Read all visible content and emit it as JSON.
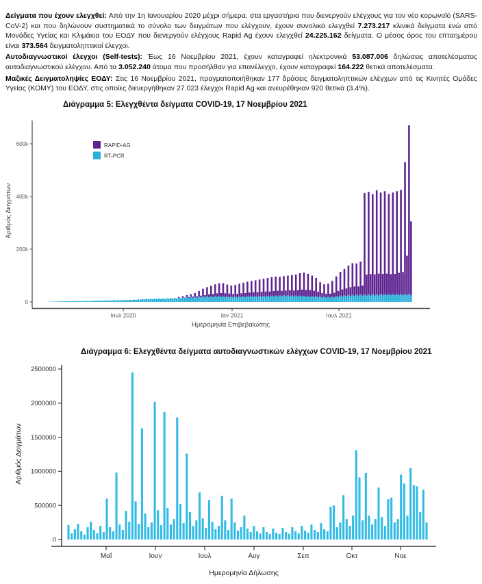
{
  "intro": {
    "paragraphs": [
      {
        "runs": [
          {
            "b": true,
            "t": "Δείγματα που έχουν ελεγχθεί: "
          },
          {
            "b": false,
            "t": "Από την 1η Ιανουαρίου 2020 μέχρι σήμερα, στα εργαστήρια που διενεργούν ελέγχους για τον νέο κορωνοϊό (SARS-CoV-2) και που δηλώνουν συστηματικά το σύνολο των δειγμάτων που ελέγχουν, έχουν συνολικά ελεγχθεί "
          },
          {
            "b": true,
            "t": "7.273.217"
          },
          {
            "b": false,
            "t": " κλινικά δείγματα ενώ από Μονάδες Υγείας και Κλιμάκια του ΕΟΔΥ που διενεργούν ελέγχους Rapid Ag έχουν ελεγχθεί "
          },
          {
            "b": true,
            "t": "24.225.162"
          },
          {
            "b": false,
            "t": " δείγματα.  Ο μέσος όρος του επταημέρου είναι "
          },
          {
            "b": true,
            "t": "373.564"
          },
          {
            "b": false,
            "t": " δειγματοληπτικοί έλεγχοι."
          }
        ]
      },
      {
        "runs": [
          {
            "b": true,
            "t": "Αυτοδιαγνωστικοί έλεγχοι (Self-tests): "
          },
          {
            "b": false,
            "t": "Έως 16 Νοεμβρίου 2021, έχουν καταγραφεί ηλεκτρονικά "
          },
          {
            "b": true,
            "t": "53.087.006"
          },
          {
            "b": false,
            "t": " δηλώσεις αποτελέσματος αυτοδιαγνωστικού ελέγχου. Από τα "
          },
          {
            "b": true,
            "t": "3.052.240"
          },
          {
            "b": false,
            "t": " άτομα που προσήλθαν για επανέλεγχο, έχουν καταγραφεί "
          },
          {
            "b": true,
            "t": "164.222"
          },
          {
            "b": false,
            "t": " θετικά αποτελέσματα."
          }
        ]
      },
      {
        "runs": [
          {
            "b": true,
            "t": "Μαζικές Δειγματοληψίες ΕΟΔΥ: "
          },
          {
            "b": false,
            "t": "Στις 16 Νοεμβρίου 2021, πραγματοποιήθηκαν 177 δράσεις δειγματοληπτικών ελέγχων από τις Κινητές Ομάδες Υγείας (ΚΟΜΥ) του ΕΟΔΥ, στις οποίες διενεργήθηκαν 27.023 έλεγχοι Rapid Ag και ανευρέθηκαν 920 θετικά (3.4%)."
          }
        ]
      }
    ]
  },
  "chart_data": [
    {
      "type": "bar",
      "stacked": true,
      "title": "Διάγραμμα 5: Ελεγχθέντα δείγματα COVID-19, 17 Νοεμβρίου 2021",
      "xlabel": "Ημερομηνία Επιβεβαίωσης",
      "ylabel": "Αριθμός Δειγμάτων",
      "yticks": [
        "0",
        "200k",
        "400k",
        "600k"
      ],
      "ytick_values_thousands": [
        0,
        200,
        400,
        600
      ],
      "xticks": [
        "Ιουλ 2020",
        "Ιαν 2021",
        "Ιουλ 2021"
      ],
      "ylim": [
        0,
        680000
      ],
      "grid": false,
      "legend_position": "top-left-inside",
      "legend": [
        {
          "label": "RAPID-AG",
          "color": "#5e2590"
        },
        {
          "label": "RT-PCR",
          "color": "#29b0db"
        }
      ],
      "unit": 1000,
      "series_note": "Daily bars late Feb 2020 - 17 Nov 2021, estimated weekly envelope; each week = [rapid_ag_weekday_peak, rapid_ag_weekend_low, rt_pcr_level] in thousands of samples",
      "weeks": [
        [
          0,
          0,
          1
        ],
        [
          0,
          0,
          1.5
        ],
        [
          0,
          0,
          2
        ],
        [
          0,
          0,
          2.5
        ],
        [
          0,
          0,
          3
        ],
        [
          0,
          0,
          3
        ],
        [
          0,
          0,
          3.5
        ],
        [
          0,
          0,
          3
        ],
        [
          0,
          0,
          3.5
        ],
        [
          0,
          0,
          4
        ],
        [
          0,
          0,
          4
        ],
        [
          0,
          0,
          4.5
        ],
        [
          0,
          0,
          5
        ],
        [
          0,
          0,
          5
        ],
        [
          0,
          0,
          5.5
        ],
        [
          0,
          0,
          6
        ],
        [
          0,
          0,
          6.5
        ],
        [
          0,
          0,
          7
        ],
        [
          0,
          0,
          7
        ],
        [
          0,
          0,
          7.5
        ],
        [
          0,
          0,
          8
        ],
        [
          0,
          0,
          9
        ],
        [
          0,
          0,
          10
        ],
        [
          0,
          0,
          11
        ],
        [
          0,
          0,
          12
        ],
        [
          0,
          0,
          12
        ],
        [
          0,
          0,
          13
        ],
        [
          0,
          0,
          13
        ],
        [
          0,
          0,
          13
        ],
        [
          0,
          0,
          14
        ],
        [
          0,
          0,
          15
        ],
        [
          0,
          0,
          15
        ],
        [
          3,
          1,
          16
        ],
        [
          5,
          2,
          17
        ],
        [
          8,
          3,
          18
        ],
        [
          10,
          4,
          19
        ],
        [
          15,
          5,
          19
        ],
        [
          22,
          7,
          20
        ],
        [
          30,
          9,
          20
        ],
        [
          35,
          11,
          21
        ],
        [
          40,
          12,
          21
        ],
        [
          45,
          14,
          22
        ],
        [
          48,
          15,
          22
        ],
        [
          50,
          15,
          21
        ],
        [
          45,
          14,
          21
        ],
        [
          42,
          13,
          20
        ],
        [
          45,
          14,
          20
        ],
        [
          48,
          15,
          21
        ],
        [
          52,
          16,
          21
        ],
        [
          55,
          17,
          22
        ],
        [
          58,
          18,
          22
        ],
        [
          60,
          18,
          22
        ],
        [
          62,
          19,
          23
        ],
        [
          65,
          20,
          23
        ],
        [
          68,
          20,
          23
        ],
        [
          70,
          21,
          24
        ],
        [
          72,
          22,
          24
        ],
        [
          70,
          21,
          25
        ],
        [
          73,
          22,
          25
        ],
        [
          75,
          23,
          25
        ],
        [
          78,
          23,
          24
        ],
        [
          80,
          24,
          24
        ],
        [
          85,
          26,
          24
        ],
        [
          88,
          26,
          23
        ],
        [
          85,
          26,
          22
        ],
        [
          78,
          24,
          22
        ],
        [
          70,
          21,
          21
        ],
        [
          55,
          17,
          20
        ],
        [
          48,
          15,
          19
        ],
        [
          50,
          15,
          19
        ],
        [
          60,
          18,
          20
        ],
        [
          75,
          23,
          22
        ],
        [
          90,
          27,
          24
        ],
        [
          100,
          30,
          25
        ],
        [
          112,
          34,
          26
        ],
        [
          120,
          36,
          27
        ],
        [
          118,
          35,
          28
        ],
        [
          125,
          38,
          28
        ],
        [
          385,
          80,
          28
        ],
        [
          390,
          82,
          28
        ],
        [
          380,
          80,
          29
        ],
        [
          395,
          83,
          29
        ],
        [
          385,
          81,
          30
        ],
        [
          390,
          82,
          30
        ],
        [
          380,
          80,
          30
        ],
        [
          385,
          81,
          30
        ],
        [
          390,
          85,
          30
        ],
        [
          395,
          88,
          30
        ],
        [
          500,
          150,
          30
        ],
        [
          640,
          280,
          30
        ]
      ]
    },
    {
      "type": "bar",
      "title": "Διάγραμμα 6: Ελεγχθέντα δείγματα αυτοδιαγνωστικών ελέγχων COVID-19, 17 Νοεμβρίου 2021",
      "xlabel": "Ημερομηνία Δήλωσης",
      "ylabel": "Αριθμός Δειγμάτων",
      "yticks": [
        "0",
        "500000",
        "1000000",
        "1500000",
        "2000000",
        "2500000"
      ],
      "ytick_values_thousands": [
        0,
        500,
        1000,
        1500,
        2000,
        2500
      ],
      "xticks": [
        "Μαΐ",
        "Ιουν",
        "Ιουλ",
        "Αυγ",
        "Σεπ",
        "Οκτ",
        "Νοε"
      ],
      "ylim": [
        0,
        2500000
      ],
      "grid": false,
      "color": "#32bbe5",
      "unit": 1000,
      "series_note": "Self-test declarations per day, early Apr 2021 - 17 Nov 2021, estimated values in thousands, one value per 2 days",
      "values": [
        210,
        90,
        150,
        230,
        120,
        70,
        180,
        260,
        140,
        90,
        200,
        110,
        600,
        180,
        120,
        980,
        220,
        140,
        420,
        260,
        2450,
        560,
        230,
        1630,
        380,
        180,
        250,
        2020,
        430,
        210,
        1870,
        460,
        220,
        300,
        1790,
        520,
        240,
        1260,
        400,
        200,
        280,
        690,
        310,
        170,
        580,
        260,
        150,
        200,
        640,
        280,
        140,
        600,
        250,
        130,
        180,
        350,
        160,
        110,
        200,
        120,
        90,
        180,
        110,
        80,
        160,
        100,
        80,
        170,
        110,
        85,
        180,
        120,
        90,
        200,
        130,
        100,
        220,
        140,
        110,
        240,
        150,
        120,
        480,
        500,
        180,
        250,
        650,
        300,
        200,
        350,
        1310,
        910,
        280,
        975,
        350,
        220,
        300,
        760,
        330,
        200,
        590,
        615,
        250,
        300,
        950,
        820,
        350,
        1050,
        800,
        780,
        400,
        730,
        250
      ]
    }
  ]
}
